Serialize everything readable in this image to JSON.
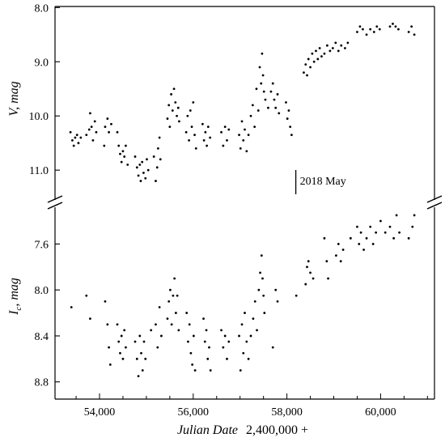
{
  "chart_data": [
    {
      "type": "scatter",
      "panel": "top",
      "ylabel": "V, mag",
      "ylabel_main": "V",
      "ylabel_unit": ", mag",
      "y_inverted": true,
      "ylim": [
        11.55,
        7.98
      ],
      "xlim": [
        53050,
        61150
      ],
      "yticks": [
        8.0,
        9.0,
        10.0,
        11.0
      ],
      "ytick_labels": [
        "8.0",
        "9.0",
        "10.0",
        "11.0"
      ],
      "annotation": "2018 May",
      "annotation_x": 58190,
      "points": [
        [
          53380,
          10.3
        ],
        [
          53420,
          10.45
        ],
        [
          53450,
          10.55
        ],
        [
          53480,
          10.4
        ],
        [
          53520,
          10.35
        ],
        [
          53550,
          10.5
        ],
        [
          53600,
          10.4
        ],
        [
          53720,
          10.35
        ],
        [
          53780,
          10.25
        ],
        [
          53800,
          9.95
        ],
        [
          53830,
          10.2
        ],
        [
          53860,
          10.45
        ],
        [
          53900,
          10.1
        ],
        [
          53930,
          10.3
        ],
        [
          54100,
          10.55
        ],
        [
          54120,
          10.2
        ],
        [
          54170,
          10.05
        ],
        [
          54200,
          10.3
        ],
        [
          54250,
          10.15
        ],
        [
          54380,
          10.3
        ],
        [
          54410,
          10.55
        ],
        [
          54440,
          10.7
        ],
        [
          54470,
          10.85
        ],
        [
          54500,
          10.65
        ],
        [
          54530,
          10.75
        ],
        [
          54560,
          10.55
        ],
        [
          54600,
          10.9
        ],
        [
          54760,
          10.75
        ],
        [
          54800,
          10.95
        ],
        [
          54830,
          11.1
        ],
        [
          54860,
          10.9
        ],
        [
          54880,
          11.2
        ],
        [
          54910,
          10.85
        ],
        [
          54940,
          11.05
        ],
        [
          54980,
          11.15
        ],
        [
          55010,
          10.8
        ],
        [
          55040,
          11.0
        ],
        [
          55160,
          10.75
        ],
        [
          55200,
          11.2
        ],
        [
          55230,
          10.95
        ],
        [
          55250,
          10.6
        ],
        [
          55280,
          10.4
        ],
        [
          55300,
          10.8
        ],
        [
          55450,
          10.05
        ],
        [
          55480,
          9.8
        ],
        [
          55500,
          10.2
        ],
        [
          55530,
          9.6
        ],
        [
          55560,
          9.9
        ],
        [
          55590,
          9.5
        ],
        [
          55620,
          9.75
        ],
        [
          55650,
          10.0
        ],
        [
          55680,
          9.85
        ],
        [
          55700,
          10.1
        ],
        [
          55850,
          10.3
        ],
        [
          55880,
          10.0
        ],
        [
          55910,
          10.45
        ],
        [
          55940,
          9.9
        ],
        [
          55970,
          10.2
        ],
        [
          56000,
          9.75
        ],
        [
          56030,
          10.35
        ],
        [
          56060,
          10.6
        ],
        [
          56200,
          10.15
        ],
        [
          56230,
          10.45
        ],
        [
          56260,
          10.3
        ],
        [
          56290,
          10.55
        ],
        [
          56320,
          10.2
        ],
        [
          56360,
          10.4
        ],
        [
          56600,
          10.3
        ],
        [
          56640,
          10.55
        ],
        [
          56680,
          10.2
        ],
        [
          56720,
          10.45
        ],
        [
          56760,
          10.25
        ],
        [
          56980,
          10.35
        ],
        [
          57010,
          10.6
        ],
        [
          57040,
          10.1
        ],
        [
          57070,
          10.45
        ],
        [
          57100,
          10.25
        ],
        [
          57140,
          10.65
        ],
        [
          57180,
          10.35
        ],
        [
          57230,
          10.0
        ],
        [
          57270,
          9.8
        ],
        [
          57310,
          10.2
        ],
        [
          57350,
          9.5
        ],
        [
          57390,
          9.9
        ],
        [
          57420,
          9.1
        ],
        [
          57450,
          9.4
        ],
        [
          57470,
          8.85
        ],
        [
          57490,
          9.25
        ],
        [
          57510,
          9.55
        ],
        [
          57540,
          9.7
        ],
        [
          57600,
          9.85
        ],
        [
          57660,
          9.55
        ],
        [
          57700,
          9.4
        ],
        [
          57730,
          9.7
        ],
        [
          57760,
          9.85
        ],
        [
          57800,
          9.6
        ],
        [
          57830,
          9.95
        ],
        [
          57980,
          9.75
        ],
        [
          58010,
          10.05
        ],
        [
          58040,
          9.9
        ],
        [
          58070,
          10.2
        ],
        [
          58100,
          10.35
        ],
        [
          58360,
          9.2
        ],
        [
          58400,
          9.05
        ],
        [
          58430,
          9.25
        ],
        [
          58460,
          8.95
        ],
        [
          58500,
          9.1
        ],
        [
          58540,
          8.85
        ],
        [
          58580,
          9.0
        ],
        [
          58620,
          8.8
        ],
        [
          58660,
          8.95
        ],
        [
          58700,
          8.75
        ],
        [
          58740,
          8.9
        ],
        [
          58800,
          8.85
        ],
        [
          58860,
          8.7
        ],
        [
          58920,
          8.8
        ],
        [
          58980,
          8.75
        ],
        [
          59040,
          8.65
        ],
        [
          59100,
          8.8
        ],
        [
          59160,
          8.7
        ],
        [
          59240,
          8.75
        ],
        [
          59300,
          8.65
        ],
        [
          59500,
          8.45
        ],
        [
          59560,
          8.35
        ],
        [
          59620,
          8.4
        ],
        [
          59700,
          8.5
        ],
        [
          59780,
          8.4
        ],
        [
          59860,
          8.45
        ],
        [
          59920,
          8.35
        ],
        [
          59980,
          8.4
        ],
        [
          60200,
          8.35
        ],
        [
          60260,
          8.3
        ],
        [
          60320,
          8.35
        ],
        [
          60380,
          8.4
        ],
        [
          60600,
          8.45
        ],
        [
          60660,
          8.35
        ],
        [
          60720,
          8.5
        ]
      ]
    },
    {
      "type": "scatter",
      "panel": "bottom",
      "ylabel": "Ic, mag",
      "ylabel_main": "I",
      "ylabel_sub": "c",
      "ylabel_unit": ", mag",
      "y_inverted": true,
      "ylim": [
        8.95,
        7.28
      ],
      "xlim": [
        53050,
        61150
      ],
      "yticks": [
        7.6,
        8.0,
        8.4,
        8.8
      ],
      "ytick_labels": [
        "7.6",
        "8.0",
        "8.4",
        "8.8"
      ],
      "xticks": [
        54000,
        56000,
        58000,
        60000
      ],
      "xtick_labels": [
        "54,000",
        "56,000",
        "58,000",
        "60,000"
      ],
      "xlabel": "Julian Date",
      "xlabel_suffix": "2,400,000 +",
      "points": [
        [
          53400,
          8.15
        ],
        [
          53720,
          8.05
        ],
        [
          53800,
          8.25
        ],
        [
          54120,
          8.1
        ],
        [
          54170,
          8.3
        ],
        [
          54200,
          8.5
        ],
        [
          54230,
          8.65
        ],
        [
          54380,
          8.3
        ],
        [
          54410,
          8.45
        ],
        [
          54440,
          8.55
        ],
        [
          54470,
          8.4
        ],
        [
          54500,
          8.6
        ],
        [
          54530,
          8.35
        ],
        [
          54560,
          8.5
        ],
        [
          54760,
          8.45
        ],
        [
          54800,
          8.6
        ],
        [
          54830,
          8.75
        ],
        [
          54860,
          8.4
        ],
        [
          54890,
          8.55
        ],
        [
          54920,
          8.7
        ],
        [
          54950,
          8.45
        ],
        [
          54980,
          8.6
        ],
        [
          55100,
          8.35
        ],
        [
          55200,
          8.3
        ],
        [
          55240,
          8.5
        ],
        [
          55280,
          8.15
        ],
        [
          55320,
          8.4
        ],
        [
          55450,
          8.25
        ],
        [
          55480,
          8.1
        ],
        [
          55510,
          8.0
        ],
        [
          55540,
          8.3
        ],
        [
          55570,
          8.05
        ],
        [
          55600,
          7.9
        ],
        [
          55630,
          8.2
        ],
        [
          55660,
          8.05
        ],
        [
          55690,
          8.35
        ],
        [
          55860,
          8.2
        ],
        [
          55890,
          8.45
        ],
        [
          55920,
          8.3
        ],
        [
          55950,
          8.55
        ],
        [
          55980,
          8.65
        ],
        [
          56010,
          8.4
        ],
        [
          56040,
          8.7
        ],
        [
          56220,
          8.25
        ],
        [
          56250,
          8.45
        ],
        [
          56280,
          8.35
        ],
        [
          56310,
          8.6
        ],
        [
          56340,
          8.5
        ],
        [
          56370,
          8.7
        ],
        [
          56600,
          8.35
        ],
        [
          56640,
          8.5
        ],
        [
          56680,
          8.4
        ],
        [
          56720,
          8.6
        ],
        [
          56760,
          8.45
        ],
        [
          56980,
          8.4
        ],
        [
          57010,
          8.7
        ],
        [
          57040,
          8.3
        ],
        [
          57070,
          8.55
        ],
        [
          57100,
          8.2
        ],
        [
          57140,
          8.45
        ],
        [
          57180,
          8.6
        ],
        [
          57230,
          8.4
        ],
        [
          57280,
          8.25
        ],
        [
          57320,
          8.1
        ],
        [
          57360,
          8.35
        ],
        [
          57400,
          8.0
        ],
        [
          57430,
          7.85
        ],
        [
          57460,
          7.7
        ],
        [
          57480,
          7.9
        ],
        [
          57500,
          8.05
        ],
        [
          57520,
          8.2
        ],
        [
          57700,
          8.5
        ],
        [
          57760,
          8.0
        ],
        [
          57800,
          8.1
        ],
        [
          58200,
          8.05
        ],
        [
          58400,
          7.95
        ],
        [
          58430,
          7.8
        ],
        [
          58460,
          7.75
        ],
        [
          58500,
          7.85
        ],
        [
          58560,
          7.9
        ],
        [
          58800,
          7.55
        ],
        [
          58850,
          7.75
        ],
        [
          58880,
          7.9
        ],
        [
          59050,
          7.7
        ],
        [
          59100,
          7.6
        ],
        [
          59150,
          7.75
        ],
        [
          59200,
          7.65
        ],
        [
          59360,
          7.55
        ],
        [
          59500,
          7.45
        ],
        [
          59540,
          7.6
        ],
        [
          59580,
          7.5
        ],
        [
          59640,
          7.65
        ],
        [
          59700,
          7.55
        ],
        [
          59780,
          7.45
        ],
        [
          59840,
          7.6
        ],
        [
          59900,
          7.5
        ],
        [
          60000,
          7.4
        ],
        [
          60100,
          7.5
        ],
        [
          60200,
          7.45
        ],
        [
          60280,
          7.55
        ],
        [
          60340,
          7.35
        ],
        [
          60400,
          7.5
        ],
        [
          60600,
          7.55
        ],
        [
          60680,
          7.45
        ],
        [
          60720,
          7.35
        ]
      ]
    }
  ]
}
